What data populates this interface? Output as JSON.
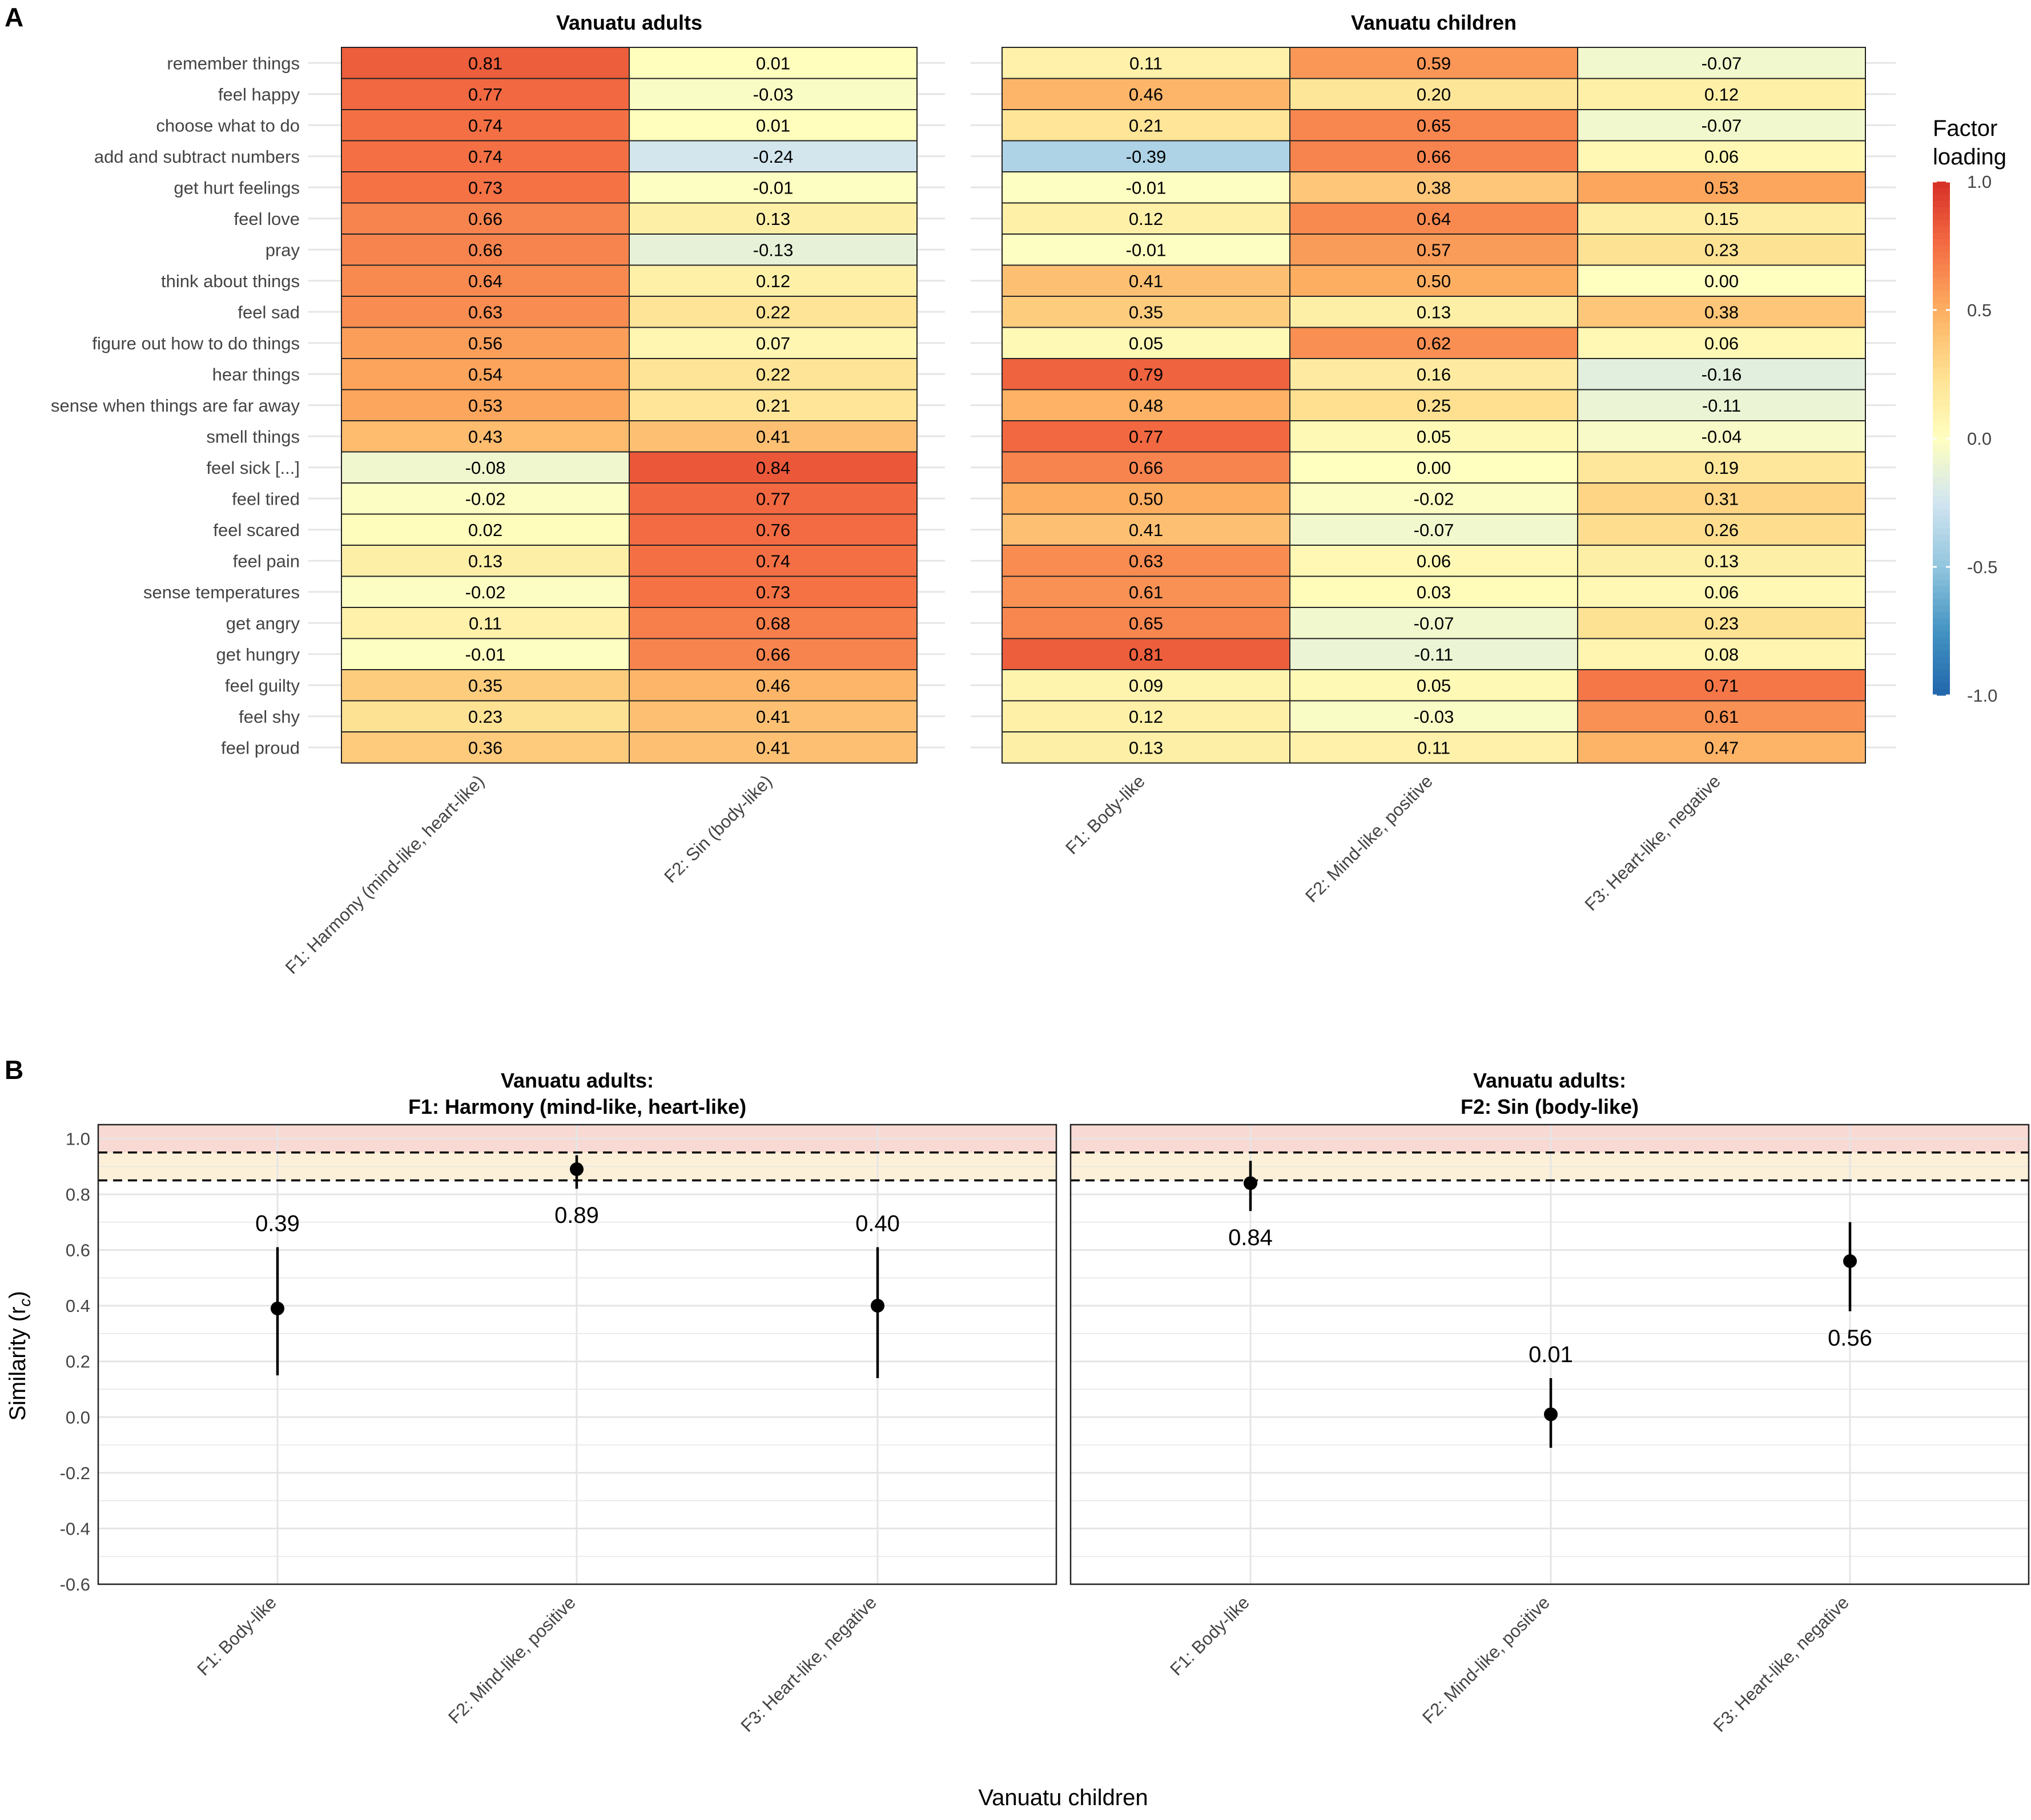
{
  "panel_labels": {
    "a": "A",
    "b": "B"
  },
  "colors": {
    "grid": "#e5e5e5",
    "cell_border": "#222222",
    "point": "#000000",
    "band_high": "#f8d9d3",
    "band_mid": "#fdf0d9",
    "colorscale": [
      "#2166ac",
      "#4393c3",
      "#92c5de",
      "#d1e5f0",
      "#ffffbf",
      "#fee090",
      "#fdae61",
      "#f46d43",
      "#d73027"
    ]
  },
  "legend": {
    "title_line1": "Factor",
    "title_line2": "loading",
    "ticks": [
      "1.0",
      "0.5",
      "0.0",
      "-0.5",
      "-1.0"
    ],
    "tick_values": [
      1.0,
      0.5,
      0.0,
      -0.5,
      -1.0
    ]
  },
  "chart_data": [
    {
      "type": "heatmap",
      "title": "Vanuatu adults",
      "rows": [
        "remember things",
        "feel happy",
        "choose what to do",
        "add and subtract numbers",
        "get hurt feelings",
        "feel love",
        "pray",
        "think about things",
        "feel sad",
        "figure out how to do things",
        "hear things",
        "sense when things are far away",
        "smell things",
        "feel sick [...]",
        "feel tired",
        "feel scared",
        "feel pain",
        "sense temperatures",
        "get angry",
        "get hungry",
        "feel guilty",
        "feel shy",
        "feel proud"
      ],
      "columns": [
        "F1: Harmony (mind-like, heart-like)",
        "F2: Sin (body-like)"
      ],
      "values": [
        [
          0.81,
          0.01
        ],
        [
          0.77,
          -0.03
        ],
        [
          0.74,
          0.01
        ],
        [
          0.74,
          -0.24
        ],
        [
          0.73,
          -0.01
        ],
        [
          0.66,
          0.13
        ],
        [
          0.66,
          -0.13
        ],
        [
          0.64,
          0.12
        ],
        [
          0.63,
          0.22
        ],
        [
          0.56,
          0.07
        ],
        [
          0.54,
          0.22
        ],
        [
          0.53,
          0.21
        ],
        [
          0.43,
          0.41
        ],
        [
          -0.08,
          0.84
        ],
        [
          -0.02,
          0.77
        ],
        [
          0.02,
          0.76
        ],
        [
          0.13,
          0.74
        ],
        [
          -0.02,
          0.73
        ],
        [
          0.11,
          0.68
        ],
        [
          -0.01,
          0.66
        ],
        [
          0.35,
          0.46
        ],
        [
          0.23,
          0.41
        ],
        [
          0.36,
          0.41
        ]
      ],
      "labels": [
        [
          "0.81",
          "0.01"
        ],
        [
          "0.77",
          "-0.03"
        ],
        [
          "0.74",
          "0.01"
        ],
        [
          "0.74",
          "-0.24"
        ],
        [
          "0.73",
          "-0.01"
        ],
        [
          "0.66",
          "0.13"
        ],
        [
          "0.66",
          "-0.13"
        ],
        [
          "0.64",
          "0.12"
        ],
        [
          "0.63",
          "0.22"
        ],
        [
          "0.56",
          "0.07"
        ],
        [
          "0.54",
          "0.22"
        ],
        [
          "0.53",
          "0.21"
        ],
        [
          "0.43",
          "0.41"
        ],
        [
          "-0.08",
          "0.84"
        ],
        [
          "-0.02",
          "0.77"
        ],
        [
          "0.02",
          "0.76"
        ],
        [
          "0.13",
          "0.74"
        ],
        [
          "-0.02",
          "0.73"
        ],
        [
          "0.11",
          "0.68"
        ],
        [
          "-0.01",
          "0.66"
        ],
        [
          "0.35",
          "0.46"
        ],
        [
          "0.23",
          "0.41"
        ],
        [
          "0.36",
          "0.41"
        ]
      ],
      "color_range": [
        -1,
        1
      ]
    },
    {
      "type": "heatmap",
      "title": "Vanuatu children",
      "rows": [
        "remember things",
        "feel happy",
        "choose what to do",
        "add and subtract numbers",
        "get hurt feelings",
        "feel love",
        "pray",
        "think about things",
        "feel sad",
        "figure out how to do things",
        "hear things",
        "sense when things are far away",
        "smell things",
        "feel sick [...]",
        "feel tired",
        "feel scared",
        "feel pain",
        "sense temperatures",
        "get angry",
        "get hungry",
        "feel guilty",
        "feel shy",
        "feel proud"
      ],
      "columns": [
        "F1: Body-like",
        "F2: Mind-like, positive",
        "F3: Heart-like, negative"
      ],
      "values": [
        [
          0.11,
          0.59,
          -0.07
        ],
        [
          0.46,
          0.2,
          0.12
        ],
        [
          0.21,
          0.65,
          -0.07
        ],
        [
          -0.39,
          0.66,
          0.06
        ],
        [
          -0.01,
          0.38,
          0.53
        ],
        [
          0.12,
          0.64,
          0.15
        ],
        [
          -0.01,
          0.57,
          0.23
        ],
        [
          0.41,
          0.5,
          0.0
        ],
        [
          0.35,
          0.13,
          0.38
        ],
        [
          0.05,
          0.62,
          0.06
        ],
        [
          0.79,
          0.16,
          -0.16
        ],
        [
          0.48,
          0.25,
          -0.11
        ],
        [
          0.77,
          0.05,
          -0.04
        ],
        [
          0.66,
          0.0,
          0.19
        ],
        [
          0.5,
          -0.02,
          0.31
        ],
        [
          0.41,
          -0.07,
          0.26
        ],
        [
          0.63,
          0.06,
          0.13
        ],
        [
          0.61,
          0.03,
          0.06
        ],
        [
          0.65,
          -0.07,
          0.23
        ],
        [
          0.81,
          -0.11,
          0.08
        ],
        [
          0.09,
          0.05,
          0.71
        ],
        [
          0.12,
          -0.03,
          0.61
        ],
        [
          0.13,
          0.11,
          0.47
        ]
      ],
      "labels": [
        [
          "0.11",
          "0.59",
          "-0.07"
        ],
        [
          "0.46",
          "0.20",
          "0.12"
        ],
        [
          "0.21",
          "0.65",
          "-0.07"
        ],
        [
          "-0.39",
          "0.66",
          "0.06"
        ],
        [
          "-0.01",
          "0.38",
          "0.53"
        ],
        [
          "0.12",
          "0.64",
          "0.15"
        ],
        [
          "-0.01",
          "0.57",
          "0.23"
        ],
        [
          "0.41",
          "0.50",
          "0.00"
        ],
        [
          "0.35",
          "0.13",
          "0.38"
        ],
        [
          "0.05",
          "0.62",
          "0.06"
        ],
        [
          "0.79",
          "0.16",
          "-0.16"
        ],
        [
          "0.48",
          "0.25",
          "-0.11"
        ],
        [
          "0.77",
          "0.05",
          "-0.04"
        ],
        [
          "0.66",
          "0.00",
          "0.19"
        ],
        [
          "0.50",
          "-0.02",
          "0.31"
        ],
        [
          "0.41",
          "-0.07",
          "0.26"
        ],
        [
          "0.63",
          "0.06",
          "0.13"
        ],
        [
          "0.61",
          "0.03",
          "0.06"
        ],
        [
          "0.65",
          "-0.07",
          "0.23"
        ],
        [
          "0.81",
          "-0.11",
          "0.08"
        ],
        [
          "0.09",
          "0.05",
          "0.71"
        ],
        [
          "0.12",
          "-0.03",
          "0.61"
        ],
        [
          "0.13",
          "0.11",
          "0.47"
        ]
      ],
      "color_range": [
        -1,
        1
      ]
    },
    {
      "type": "scatter",
      "title": "Vanuatu adults:\nF1: Harmony (mind-like, heart-like)",
      "xlabel": "Vanuatu children",
      "ylabel": "Similarity (r",
      "ylabel_sub": "c",
      "ylabel_close": ")",
      "categories": [
        "F1: Body-like",
        "F2: Mind-like, positive",
        "F3: Heart-like, negative"
      ],
      "values": [
        0.39,
        0.89,
        0.4
      ],
      "ci_low": [
        0.15,
        0.82,
        0.14
      ],
      "ci_high": [
        0.61,
        0.94,
        0.61
      ],
      "value_labels": [
        "0.39",
        "0.89",
        "0.40"
      ],
      "label_position": [
        "above",
        "below",
        "above"
      ],
      "ylim": [
        -0.6,
        1.05
      ],
      "yticks": [
        -0.6,
        -0.4,
        -0.2,
        0.0,
        0.2,
        0.4,
        0.6,
        0.8,
        1.0
      ],
      "ytick_labels": [
        "-0.6",
        "-0.4",
        "-0.2",
        "0.0",
        "0.2",
        "0.4",
        "0.6",
        "0.8",
        "1.0"
      ],
      "reference_lines": [
        0.85,
        0.95
      ],
      "bands": [
        [
          0.85,
          0.95
        ],
        [
          0.95,
          1.05
        ]
      ]
    },
    {
      "type": "scatter",
      "title": "Vanuatu adults:\nF2: Sin (body-like)",
      "xlabel": "Vanuatu children",
      "categories": [
        "F1: Body-like",
        "F2: Mind-like, positive",
        "F3: Heart-like, negative"
      ],
      "values": [
        0.84,
        0.01,
        0.56
      ],
      "ci_low": [
        0.74,
        -0.11,
        0.38
      ],
      "ci_high": [
        0.92,
        0.14,
        0.7
      ],
      "value_labels": [
        "0.84",
        "0.01",
        "0.56"
      ],
      "label_position": [
        "below",
        "above",
        "below"
      ],
      "ylim": [
        -0.6,
        1.05
      ],
      "reference_lines": [
        0.85,
        0.95
      ],
      "bands": [
        [
          0.85,
          0.95
        ],
        [
          0.95,
          1.05
        ]
      ]
    }
  ]
}
